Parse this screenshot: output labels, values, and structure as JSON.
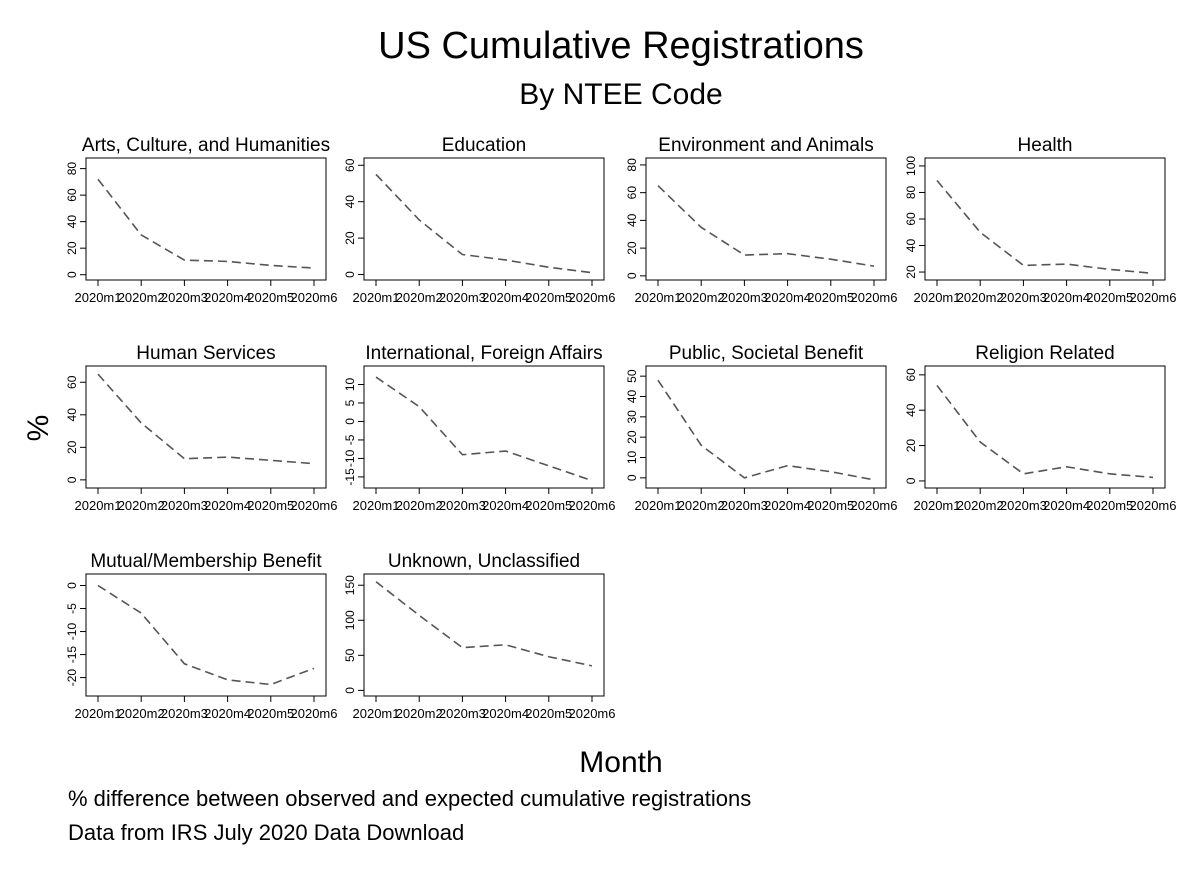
{
  "figure": {
    "title": "US Cumulative Registrations",
    "subtitle": "By NTEE Code",
    "ylabel": "%",
    "xlabel": "Month",
    "notes": [
      "% difference between observed and expected cumulative registrations",
      "Data from IRS July 2020 Data Download"
    ]
  },
  "colors": {
    "line": "#555555",
    "axis": "#000000",
    "background": "#ffffff"
  },
  "chart_data": [
    {
      "type": "line",
      "title": "Arts, Culture, and Humanities",
      "x": [
        "2020m1",
        "2020m2",
        "2020m3",
        "2020m4",
        "2020m5",
        "2020m6"
      ],
      "series": [
        {
          "values": [
            72,
            30,
            11,
            10,
            7,
            5
          ]
        }
      ],
      "yticks": [
        0,
        20,
        40,
        60,
        80
      ],
      "ylim": [
        -4,
        88
      ],
      "line_style": "dashed",
      "grid": false
    },
    {
      "type": "line",
      "title": "Education",
      "x": [
        "2020m1",
        "2020m2",
        "2020m3",
        "2020m4",
        "2020m5",
        "2020m6"
      ],
      "series": [
        {
          "values": [
            55,
            30,
            11,
            8,
            4,
            1
          ]
        }
      ],
      "yticks": [
        0,
        20,
        40,
        60
      ],
      "ylim": [
        -3,
        64
      ],
      "line_style": "dashed",
      "grid": false
    },
    {
      "type": "line",
      "title": "Environment and Animals",
      "x": [
        "2020m1",
        "2020m2",
        "2020m3",
        "2020m4",
        "2020m5",
        "2020m6"
      ],
      "series": [
        {
          "values": [
            65,
            35,
            15,
            16,
            12,
            7
          ]
        }
      ],
      "yticks": [
        0,
        20,
        40,
        60,
        80
      ],
      "ylim": [
        -3,
        85
      ],
      "line_style": "dashed",
      "grid": false
    },
    {
      "type": "line",
      "title": "Health",
      "x": [
        "2020m1",
        "2020m2",
        "2020m3",
        "2020m4",
        "2020m5",
        "2020m6"
      ],
      "series": [
        {
          "values": [
            89,
            50,
            25,
            26,
            22,
            19
          ]
        }
      ],
      "yticks": [
        20,
        40,
        60,
        80,
        100
      ],
      "ylim": [
        14,
        106
      ],
      "line_style": "dashed",
      "grid": false
    },
    {
      "type": "line",
      "title": "Human Services",
      "x": [
        "2020m1",
        "2020m2",
        "2020m3",
        "2020m4",
        "2020m5",
        "2020m6"
      ],
      "series": [
        {
          "values": [
            65,
            35,
            13,
            14,
            12,
            10
          ]
        }
      ],
      "yticks": [
        0,
        20,
        40,
        60
      ],
      "ylim": [
        -5,
        70
      ],
      "line_style": "dashed",
      "grid": false
    },
    {
      "type": "line",
      "title": "International, Foreign Affairs",
      "x": [
        "2020m1",
        "2020m2",
        "2020m3",
        "2020m4",
        "2020m5",
        "2020m6"
      ],
      "series": [
        {
          "values": [
            12,
            4,
            -9,
            -8,
            -12,
            -16
          ]
        }
      ],
      "yticks": [
        -15,
        -10,
        -5,
        0,
        5,
        10
      ],
      "ylim": [
        -18,
        15
      ],
      "line_style": "dashed",
      "grid": false
    },
    {
      "type": "line",
      "title": "Public, Societal Benefit",
      "x": [
        "2020m1",
        "2020m2",
        "2020m3",
        "2020m4",
        "2020m5",
        "2020m6"
      ],
      "series": [
        {
          "values": [
            48,
            16,
            0,
            6,
            3,
            -1
          ]
        }
      ],
      "yticks": [
        0,
        10,
        20,
        30,
        40,
        50
      ],
      "ylim": [
        -5,
        55
      ],
      "line_style": "dashed",
      "grid": false
    },
    {
      "type": "line",
      "title": "Religion Related",
      "x": [
        "2020m1",
        "2020m2",
        "2020m3",
        "2020m4",
        "2020m5",
        "2020m6"
      ],
      "series": [
        {
          "values": [
            54,
            22,
            4,
            8,
            4,
            2
          ]
        }
      ],
      "yticks": [
        0,
        20,
        40,
        60
      ],
      "ylim": [
        -4,
        65
      ],
      "line_style": "dashed",
      "grid": false
    },
    {
      "type": "line",
      "title": "Mutual/Membership Benefit",
      "x": [
        "2020m1",
        "2020m2",
        "2020m3",
        "2020m4",
        "2020m5",
        "2020m6"
      ],
      "series": [
        {
          "values": [
            0,
            -6,
            -17,
            -20.5,
            -21.5,
            -18
          ]
        }
      ],
      "yticks": [
        -20,
        -15,
        -10,
        -5,
        0
      ],
      "ylim": [
        -24,
        2.5
      ],
      "line_style": "dashed",
      "grid": false
    },
    {
      "type": "line",
      "title": "Unknown, Unclassified",
      "x": [
        "2020m1",
        "2020m2",
        "2020m3",
        "2020m4",
        "2020m5",
        "2020m6"
      ],
      "series": [
        {
          "values": [
            155,
            107,
            61,
            65,
            48,
            35
          ]
        }
      ],
      "yticks": [
        0,
        50,
        100,
        150
      ],
      "ylim": [
        -8,
        166
      ],
      "line_style": "dashed",
      "grid": false
    }
  ]
}
